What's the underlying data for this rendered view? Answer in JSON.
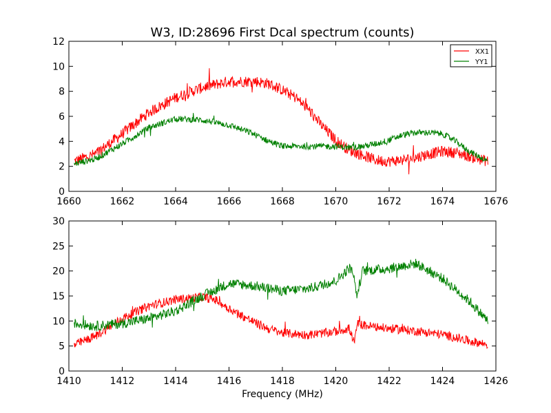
{
  "chart_data": [
    {
      "type": "line",
      "title": "W3, ID:28696 First Dcal spectrum (counts)",
      "xlabel": "",
      "ylabel": "",
      "xlim": [
        1660,
        1676
      ],
      "ylim": [
        0,
        12
      ],
      "xticks": [
        1660,
        1662,
        1664,
        1666,
        1668,
        1670,
        1672,
        1674,
        1676
      ],
      "yticks": [
        0,
        2,
        4,
        6,
        8,
        10,
        12
      ],
      "legend": {
        "position": "top-right",
        "entries": [
          "XX1",
          "YY1"
        ]
      },
      "grid": false,
      "series": [
        {
          "name": "XX1",
          "color": "#ff0000",
          "noise": 0.45,
          "x": [
            1660.2,
            1661.0,
            1662.0,
            1663.0,
            1664.0,
            1665.0,
            1666.0,
            1667.0,
            1667.5,
            1668.0,
            1668.5,
            1669.0,
            1669.5,
            1670.0,
            1670.5,
            1671.0,
            1671.5,
            1672.0,
            1672.5,
            1673.0,
            1673.5,
            1674.0,
            1674.5,
            1675.0,
            1675.7
          ],
          "y": [
            2.4,
            3.0,
            4.6,
            6.3,
            7.5,
            8.3,
            8.8,
            8.8,
            8.6,
            8.1,
            7.5,
            6.5,
            5.2,
            4.1,
            3.3,
            2.9,
            2.5,
            2.4,
            2.5,
            2.7,
            3.0,
            3.2,
            3.1,
            2.8,
            2.4
          ]
        },
        {
          "name": "YY1",
          "color": "#008000",
          "noise": 0.25,
          "x": [
            1660.2,
            1661.0,
            1662.0,
            1663.0,
            1664.0,
            1665.0,
            1666.0,
            1666.8,
            1667.5,
            1668.0,
            1669.0,
            1670.0,
            1670.5,
            1671.0,
            1671.5,
            1672.0,
            1672.5,
            1673.0,
            1673.5,
            1674.0,
            1674.5,
            1675.0,
            1675.7
          ],
          "y": [
            2.2,
            2.6,
            3.8,
            5.1,
            5.8,
            5.7,
            5.3,
            4.7,
            4.0,
            3.6,
            3.6,
            3.6,
            3.5,
            3.6,
            3.8,
            4.1,
            4.5,
            4.7,
            4.7,
            4.6,
            4.0,
            3.2,
            2.4
          ]
        }
      ]
    },
    {
      "type": "line",
      "title": "",
      "xlabel": "Frequency (MHz)",
      "ylabel": "",
      "xlim": [
        1410,
        1426
      ],
      "ylim": [
        0,
        30
      ],
      "xticks": [
        1410,
        1412,
        1414,
        1416,
        1418,
        1420,
        1422,
        1424,
        1426
      ],
      "yticks": [
        0,
        5,
        10,
        15,
        20,
        25,
        30
      ],
      "grid": false,
      "series": [
        {
          "name": "XX1",
          "color": "#ff0000",
          "noise": 0.9,
          "x": [
            1410.2,
            1411.0,
            1412.0,
            1413.0,
            1414.0,
            1415.0,
            1415.5,
            1416.0,
            1416.5,
            1417.0,
            1417.5,
            1418.0,
            1419.0,
            1420.0,
            1420.5,
            1420.7,
            1420.8,
            1421.0,
            1421.5,
            1422.0,
            1423.0,
            1424.0,
            1425.0,
            1425.7
          ],
          "y": [
            5.2,
            7.0,
            10.5,
            13.0,
            14.3,
            14.8,
            14.2,
            12.5,
            11.0,
            9.6,
            8.4,
            7.6,
            7.2,
            7.9,
            8.5,
            5.5,
            9.5,
            9.2,
            8.8,
            8.5,
            8.0,
            7.3,
            6.0,
            5.3
          ]
        },
        {
          "name": "YY1",
          "color": "#008000",
          "noise": 1.0,
          "x": [
            1410.2,
            1411.0,
            1412.0,
            1413.0,
            1414.0,
            1415.0,
            1416.0,
            1417.0,
            1418.0,
            1419.0,
            1420.0,
            1420.6,
            1420.8,
            1421.0,
            1422.0,
            1423.0,
            1424.0,
            1425.0,
            1425.7
          ],
          "y": [
            9.5,
            9.0,
            9.5,
            10.5,
            12.0,
            15.0,
            17.5,
            17.0,
            16.0,
            16.5,
            18.0,
            21.0,
            15.0,
            20.0,
            20.5,
            21.5,
            18.5,
            14.0,
            10.0
          ]
        }
      ]
    }
  ]
}
